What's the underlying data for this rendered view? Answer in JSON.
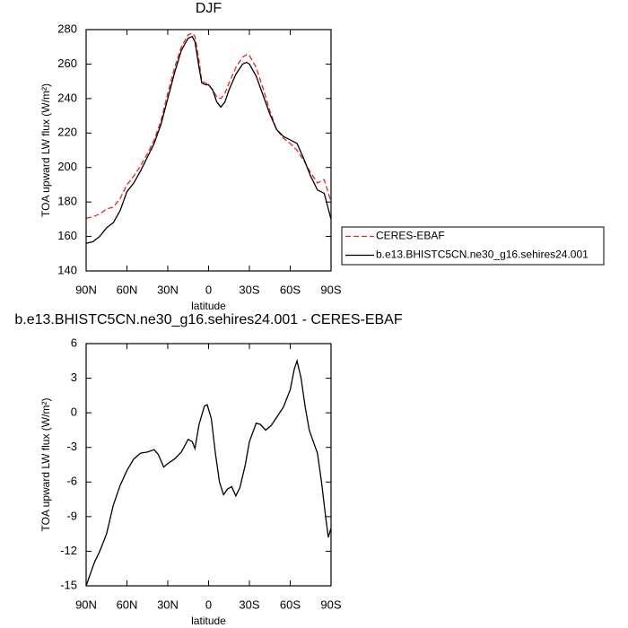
{
  "chart_data": [
    {
      "type": "line",
      "title": "DJF",
      "ylabel": "TOA upward LW flux (W/m²)",
      "xlabel": "latitude",
      "xlim": [
        90,
        -90
      ],
      "xticks": [
        {
          "value": 90,
          "label": "90N"
        },
        {
          "value": 60,
          "label": "60N"
        },
        {
          "value": 30,
          "label": "30N"
        },
        0,
        {
          "value": -30,
          "label": "30S"
        },
        {
          "value": -60,
          "label": "60S"
        },
        {
          "value": -90,
          "label": "90S"
        }
      ],
      "ylim": [
        140,
        280
      ],
      "yticks": [
        140,
        160,
        180,
        200,
        220,
        240,
        260,
        280
      ],
      "legend": "right",
      "x": [
        90,
        85,
        80,
        75,
        70,
        65,
        60,
        55,
        50,
        45,
        40,
        35,
        30,
        25,
        20,
        15,
        12,
        10,
        7,
        5,
        2,
        0,
        -3,
        -6,
        -9,
        -12,
        -15,
        -20,
        -25,
        -28,
        -30,
        -35,
        -40,
        -45,
        -50,
        -55,
        -60,
        -65,
        -70,
        -75,
        -80,
        -85,
        -90
      ],
      "series": [
        {
          "name": "CERES-EBAF",
          "color": "#e8261f",
          "dashed": true,
          "values": [
            170.5,
            171.5,
            173,
            176,
            177,
            182,
            190,
            195,
            201,
            208,
            216,
            227,
            243,
            258,
            270,
            277,
            278,
            276,
            262,
            250,
            249,
            248,
            245,
            241,
            240,
            243,
            249,
            258,
            264,
            265.5,
            265,
            258,
            246,
            233,
            222,
            217,
            214,
            210,
            204,
            197,
            191,
            193,
            180
          ]
        },
        {
          "name": "b.e13.BHISTC5CN.ne30_g16.sehires24.001",
          "color": "#000000",
          "dashed": false,
          "values": [
            156,
            157,
            160,
            165,
            168,
            175,
            186,
            191,
            198,
            206,
            214,
            225,
            240,
            255,
            268,
            275,
            276,
            273,
            258,
            249,
            248,
            248,
            245,
            238,
            235,
            238,
            245,
            254,
            260,
            261,
            260,
            253,
            242,
            231,
            222,
            218,
            216,
            214,
            205,
            195,
            187,
            185,
            170
          ]
        }
      ]
    },
    {
      "type": "line",
      "title": "b.e13.BHISTC5CN.ne30_g16.sehires24.001 - CERES-EBAF",
      "ylabel": "TOA upward LW flux (W/m²)",
      "xlabel": "latitude",
      "xlim": [
        90,
        -90
      ],
      "xticks": [
        {
          "value": 90,
          "label": "90N"
        },
        {
          "value": 60,
          "label": "60N"
        },
        {
          "value": 30,
          "label": "30N"
        },
        0,
        {
          "value": -30,
          "label": "30S"
        },
        {
          "value": -60,
          "label": "60S"
        },
        {
          "value": -90,
          "label": "90S"
        }
      ],
      "ylim": [
        -15,
        6
      ],
      "yticks": [
        -15,
        -12,
        -9,
        -6,
        -3,
        0,
        3,
        6
      ],
      "color": "#000000",
      "x": [
        90,
        87,
        84,
        80,
        75,
        70,
        65,
        60,
        55,
        50,
        45,
        40,
        37,
        33,
        30,
        25,
        20,
        15,
        12,
        10,
        7,
        3,
        1,
        -2,
        -5,
        -8,
        -11,
        -14,
        -17,
        -20,
        -23,
        -27,
        -30,
        -35,
        -38,
        -42,
        -46,
        -50,
        -55,
        -60,
        -63,
        -65,
        -68,
        -71,
        -74,
        -77,
        -80,
        -83,
        -86,
        -88,
        -90
      ],
      "values": [
        -15,
        -14,
        -13,
        -12,
        -10.5,
        -8,
        -6.3,
        -5,
        -4,
        -3.5,
        -3.4,
        -3.2,
        -3.6,
        -4.7,
        -4.4,
        -4,
        -3.4,
        -2.3,
        -2.5,
        -3.1,
        -1,
        0.6,
        0.7,
        -0.5,
        -3.5,
        -6,
        -7.1,
        -6.6,
        -6.4,
        -7.2,
        -6.5,
        -4.5,
        -2.5,
        -0.9,
        -1,
        -1.5,
        -1.1,
        -0.4,
        0.5,
        2,
        3.8,
        4.5,
        3,
        0.5,
        -1.5,
        -2.5,
        -3.5,
        -6,
        -9,
        -10.8,
        -10
      ]
    }
  ]
}
